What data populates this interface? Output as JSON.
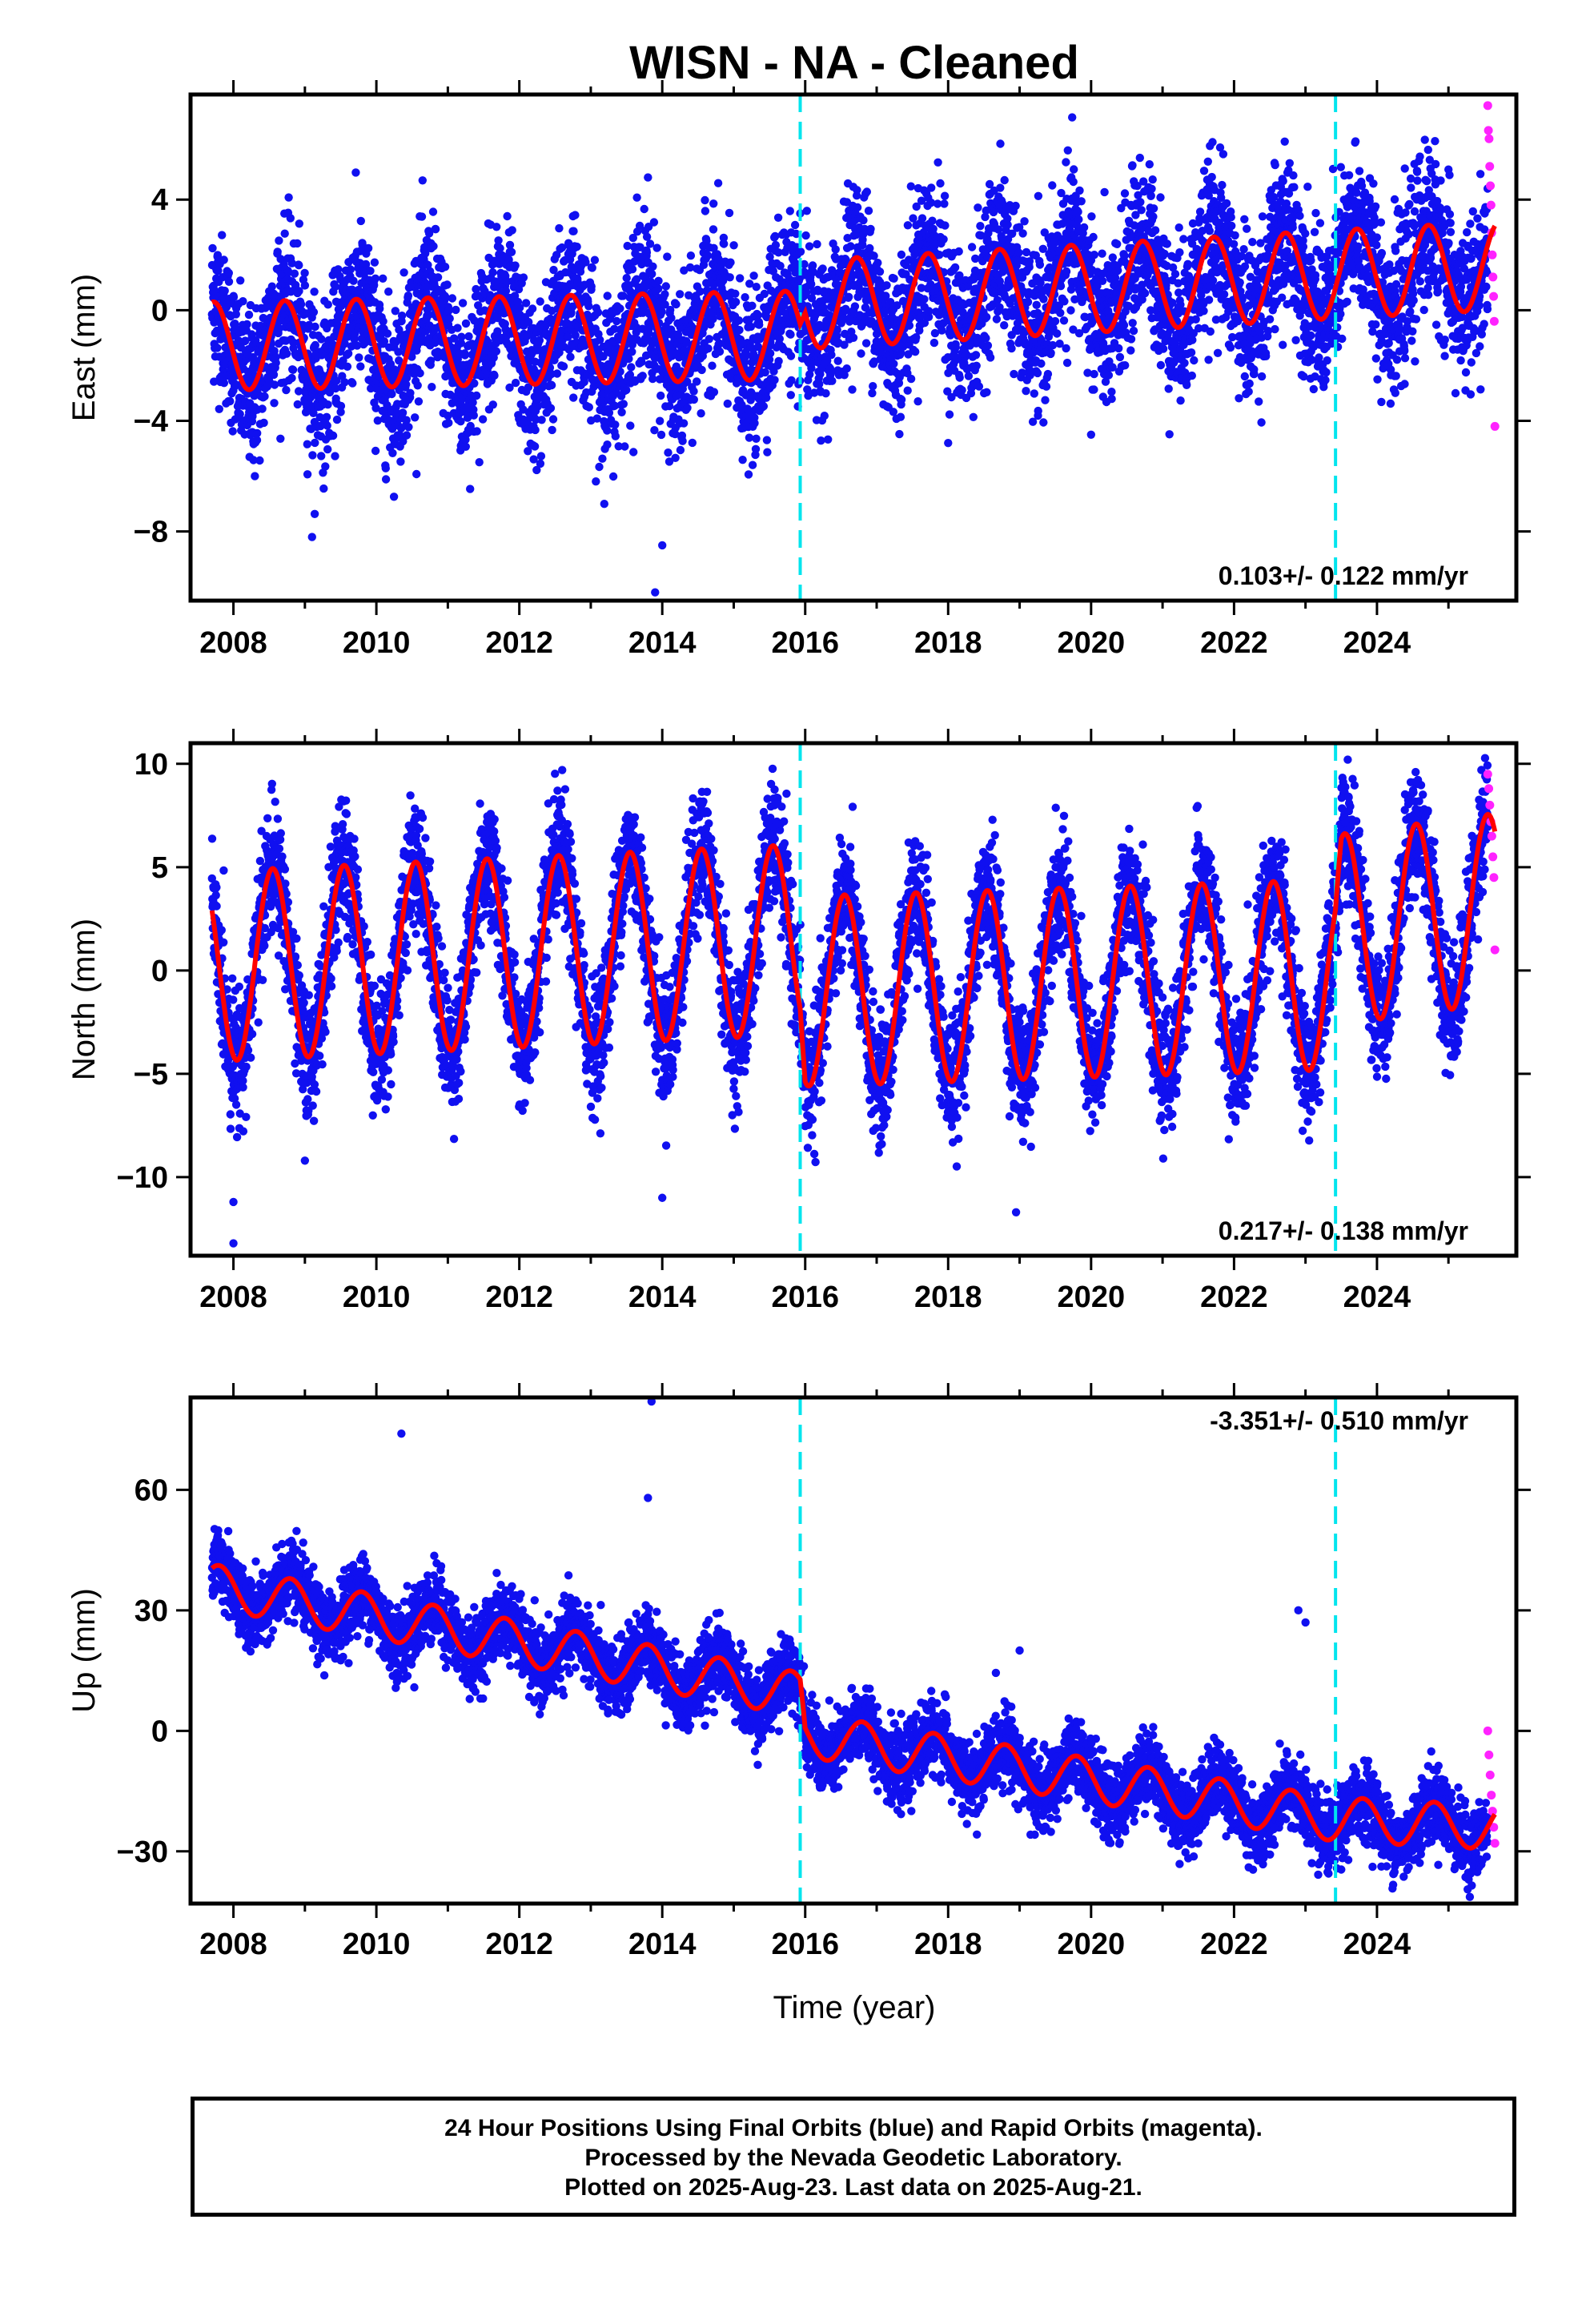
{
  "title": "WISN  - NA - Cleaned",
  "xlabel": "Time (year)",
  "caption": {
    "line1": "24 Hour Positions Using Final Orbits (blue) and Rapid Orbits (magenta).",
    "line2": "Processed by the Nevada Geodetic Laboratory.",
    "line3": "Plotted on 2025-Aug-23. Last data on 2025-Aug-21."
  },
  "colors": {
    "final_orbits": "#1010f0",
    "rapid_orbits": "#ff22ff",
    "model_fit": "#ff0000",
    "event_lines": "#00e5ee"
  },
  "chart_data": [
    {
      "type": "scatter",
      "component": "East",
      "ylabel": "East (mm)",
      "rate_text": "0.103+/- 0.122 mm/yr",
      "xlim": [
        2007.4,
        2025.95
      ],
      "ylim": [
        -10.5,
        7.8
      ],
      "xticks": [
        "2008",
        "2010",
        "2012",
        "2014",
        "2016",
        "2018",
        "2020",
        "2022",
        "2024"
      ],
      "yticks": [
        -8,
        -4,
        0,
        4
      ],
      "event_lines_x": [
        2015.93,
        2023.42
      ],
      "series": [
        {
          "name": "Final Orbits (blue)",
          "x_range": [
            2007.7,
            2025.55
          ],
          "spread_mm": 1.4
        },
        {
          "name": "Rapid Orbits (magenta)",
          "x_range": [
            2025.55,
            2025.65
          ],
          "values": [
            7.4,
            6.5,
            6.2,
            5.2,
            4.5,
            3.8,
            2.8,
            2.0,
            1.2,
            0.5,
            -0.4,
            -4.2
          ]
        }
      ],
      "model_fit": {
        "amplitude_mm": 1.6,
        "peak_month_fraction": 0.72,
        "trend_points": [
          [
            2007.7,
            -1.3
          ],
          [
            2015.93,
            -0.9
          ],
          [
            2016.0,
            0.2
          ],
          [
            2023.42,
            1.3
          ],
          [
            2025.65,
            1.6
          ]
        ],
        "outliers": [
          [
            2008.3,
            -6.0
          ],
          [
            2009.1,
            -8.2
          ],
          [
            2013.9,
            -10.2
          ],
          [
            2014.0,
            -8.5
          ],
          [
            2013.8,
            4.8
          ],
          [
            2020.0,
            -4.5
          ],
          [
            2018.0,
            -4.8
          ]
        ]
      }
    },
    {
      "type": "scatter",
      "component": "North",
      "ylabel": "North (mm)",
      "rate_text": "0.217+/- 0.138 mm/yr",
      "xlim": [
        2007.4,
        2025.95
      ],
      "ylim": [
        -13.8,
        11.0
      ],
      "xticks": [
        "2008",
        "2010",
        "2012",
        "2014",
        "2016",
        "2018",
        "2020",
        "2022",
        "2024"
      ],
      "yticks": [
        -10,
        -5,
        0,
        5,
        10
      ],
      "event_lines_x": [
        2015.93,
        2023.42
      ],
      "series": [
        {
          "name": "Final Orbits (blue)",
          "x_range": [
            2007.7,
            2025.55
          ],
          "spread_mm": 1.5
        },
        {
          "name": "Rapid Orbits (magenta)",
          "x_range": [
            2025.55,
            2025.65
          ],
          "values": [
            9.5,
            8.8,
            8.0,
            7.2,
            6.5,
            5.5,
            4.5,
            1.0
          ]
        }
      ],
      "model_fit": {
        "amplitude_mm": 4.6,
        "peak_month_fraction": 0.55,
        "trend_points": [
          [
            2007.7,
            0.2
          ],
          [
            2015.93,
            1.5
          ],
          [
            2016.0,
            -1.0
          ],
          [
            2023.42,
            -0.2
          ],
          [
            2023.5,
            2.0
          ],
          [
            2025.65,
            3.0
          ]
        ],
        "outliers": [
          [
            2008.0,
            -11.2
          ],
          [
            2008.0,
            -13.2
          ],
          [
            2009.0,
            -9.2
          ],
          [
            2012.6,
            9.7
          ],
          [
            2014.0,
            -11.0
          ],
          [
            2018.95,
            -11.7
          ]
        ]
      }
    },
    {
      "type": "scatter",
      "component": "Up",
      "ylabel": "Up (mm)",
      "rate_text": "-3.351+/- 0.510 mm/yr",
      "xlim": [
        2007.4,
        2025.95
      ],
      "ylim": [
        -43,
        83
      ],
      "xticks": [
        "2008",
        "2010",
        "2012",
        "2014",
        "2016",
        "2018",
        "2020",
        "2022",
        "2024"
      ],
      "yticks": [
        -30,
        0,
        30,
        60
      ],
      "event_lines_x": [
        2015.93,
        2023.42
      ],
      "series": [
        {
          "name": "Final Orbits (blue)",
          "x_range": [
            2007.7,
            2025.55
          ],
          "spread_mm": 4.5
        },
        {
          "name": "Rapid Orbits (magenta)",
          "x_range": [
            2025.55,
            2025.65
          ],
          "values": [
            0,
            -6,
            -11,
            -16,
            -20,
            -24,
            -28
          ]
        }
      ],
      "model_fit": {
        "amplitude_mm": 5.5,
        "peak_month_fraction": 0.8,
        "trend_points": [
          [
            2007.7,
            36
          ],
          [
            2015.93,
            9
          ],
          [
            2016.0,
            -1
          ],
          [
            2023.42,
            -22
          ],
          [
            2025.65,
            -24
          ]
        ],
        "outliers": [
          [
            2010.35,
            74
          ],
          [
            2013.85,
            82
          ],
          [
            2013.8,
            58
          ],
          [
            2022.9,
            30
          ],
          [
            2023.0,
            27
          ],
          [
            2019.0,
            20
          ]
        ]
      }
    }
  ]
}
